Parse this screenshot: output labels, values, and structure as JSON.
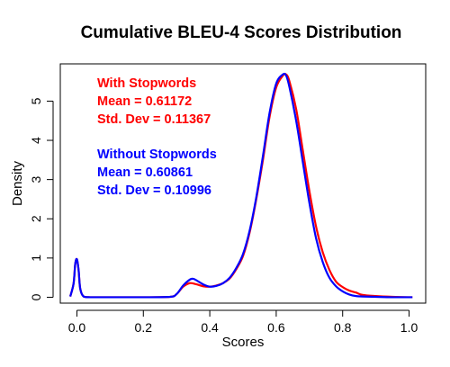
{
  "chart_data": {
    "type": "line",
    "title": "Cumulative BLEU-4 Scores Distribution",
    "xlabel": "Scores",
    "ylabel": "Density",
    "xlim": [
      -0.05,
      1.05
    ],
    "ylim": [
      -0.15,
      5.95
    ],
    "x_ticks": [
      0.0,
      0.2,
      0.4,
      0.6,
      0.8,
      1.0
    ],
    "x_tick_labels": [
      "0.0",
      "0.2",
      "0.4",
      "0.6",
      "0.8",
      "1.0"
    ],
    "y_ticks": [
      0,
      1,
      2,
      3,
      4,
      5
    ],
    "y_tick_labels": [
      "0",
      "1",
      "2",
      "3",
      "4",
      "5"
    ],
    "grid": false,
    "series": [
      {
        "name": "With Stopwords",
        "color": "#ff0000",
        "x": [
          -0.02,
          -0.01,
          -0.005,
          0.0,
          0.005,
          0.01,
          0.02,
          0.04,
          0.1,
          0.2,
          0.28,
          0.3,
          0.32,
          0.34,
          0.36,
          0.38,
          0.4,
          0.42,
          0.44,
          0.46,
          0.48,
          0.5,
          0.52,
          0.54,
          0.56,
          0.58,
          0.6,
          0.62,
          0.63,
          0.64,
          0.66,
          0.68,
          0.7,
          0.72,
          0.74,
          0.76,
          0.78,
          0.8,
          0.82,
          0.84,
          0.86,
          0.9,
          0.95,
          1.0,
          1.01
        ],
        "y": [
          0.02,
          0.35,
          0.85,
          0.97,
          0.7,
          0.22,
          0.02,
          0.0,
          0.0,
          0.0,
          0.01,
          0.08,
          0.27,
          0.36,
          0.33,
          0.28,
          0.27,
          0.3,
          0.36,
          0.48,
          0.72,
          1.05,
          1.65,
          2.5,
          3.5,
          4.6,
          5.35,
          5.65,
          5.68,
          5.5,
          4.8,
          3.75,
          2.7,
          1.8,
          1.15,
          0.7,
          0.4,
          0.26,
          0.17,
          0.12,
          0.06,
          0.03,
          0.01,
          0.0,
          0.0
        ]
      },
      {
        "name": "Without Stopwords",
        "color": "#0000ff",
        "x": [
          -0.02,
          -0.01,
          -0.005,
          0.0,
          0.005,
          0.01,
          0.02,
          0.04,
          0.1,
          0.2,
          0.28,
          0.3,
          0.32,
          0.34,
          0.35,
          0.36,
          0.38,
          0.4,
          0.42,
          0.44,
          0.46,
          0.48,
          0.5,
          0.52,
          0.54,
          0.56,
          0.58,
          0.6,
          0.62,
          0.63,
          0.64,
          0.66,
          0.68,
          0.7,
          0.72,
          0.74,
          0.76,
          0.78,
          0.8,
          0.82,
          0.84,
          0.86,
          0.9,
          0.95,
          1.0,
          1.01
        ],
        "y": [
          0.02,
          0.35,
          0.85,
          0.97,
          0.7,
          0.22,
          0.02,
          0.0,
          0.0,
          0.0,
          0.01,
          0.08,
          0.3,
          0.45,
          0.47,
          0.43,
          0.33,
          0.27,
          0.29,
          0.36,
          0.5,
          0.75,
          1.1,
          1.7,
          2.55,
          3.6,
          4.7,
          5.45,
          5.68,
          5.65,
          5.35,
          4.5,
          3.45,
          2.4,
          1.5,
          0.9,
          0.5,
          0.28,
          0.15,
          0.07,
          0.03,
          0.02,
          0.01,
          0.0,
          0.0,
          0.0
        ]
      }
    ],
    "annotations": [
      {
        "color": "#ff0000",
        "lines": [
          "With Stopwords",
          "Mean = 0.61172",
          "Std. Dev = 0.11367"
        ]
      },
      {
        "color": "#0000ff",
        "lines": [
          "Without Stopwords",
          "Mean = 0.60861",
          "Std. Dev = 0.10996"
        ]
      }
    ]
  }
}
